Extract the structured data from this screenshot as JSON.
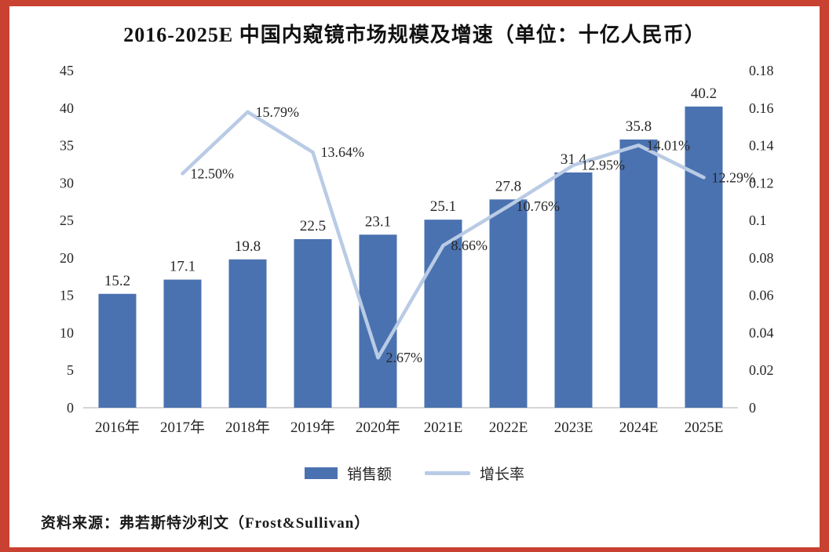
{
  "chart_data": {
    "type": "bar+line",
    "title": "2016-2025E 中国内窥镜市场规模及增速（单位：十亿人民币）",
    "source": "资料来源：弗若斯特沙利文（Frost&Sullivan）",
    "categories": [
      "2016年",
      "2017年",
      "2018年",
      "2019年",
      "2020年",
      "2021E",
      "2022E",
      "2023E",
      "2024E",
      "2025E"
    ],
    "series": [
      {
        "name": "销售额",
        "type": "bar",
        "axis": "left",
        "color": "#4a72b0",
        "values": [
          15.2,
          17.1,
          19.8,
          22.5,
          23.1,
          25.1,
          27.8,
          31.4,
          35.8,
          40.2
        ],
        "labels": [
          "15.2",
          "17.1",
          "19.8",
          "22.5",
          "23.1",
          "25.1",
          "27.8",
          "31.4",
          "35.8",
          "40.2"
        ]
      },
      {
        "name": "增长率",
        "type": "line",
        "axis": "right",
        "color": "#b9cbe5",
        "values": [
          null,
          0.125,
          0.1579,
          0.1364,
          0.0267,
          0.0866,
          0.1076,
          0.1295,
          0.1401,
          0.1229
        ],
        "labels": [
          "",
          "12.50%",
          "15.79%",
          "13.64%",
          "2.67%",
          "8.66%",
          "10.76%",
          "12.95%",
          "14.01%",
          "12.29%"
        ]
      }
    ],
    "y_left": {
      "min": 0,
      "max": 45,
      "ticks": [
        "45",
        "40",
        "35",
        "30",
        "25",
        "20",
        "15",
        "10",
        "5",
        "0"
      ]
    },
    "y_right": {
      "min": 0,
      "max": 0.18,
      "ticks": [
        "0.18",
        "0.16",
        "0.14",
        "0.12",
        "0.1",
        "0.08",
        "0.06",
        "0.04",
        "0.02",
        "0"
      ]
    },
    "legend": [
      "销售额",
      "增长率"
    ],
    "grid": "off",
    "legend_position": "bottom"
  }
}
